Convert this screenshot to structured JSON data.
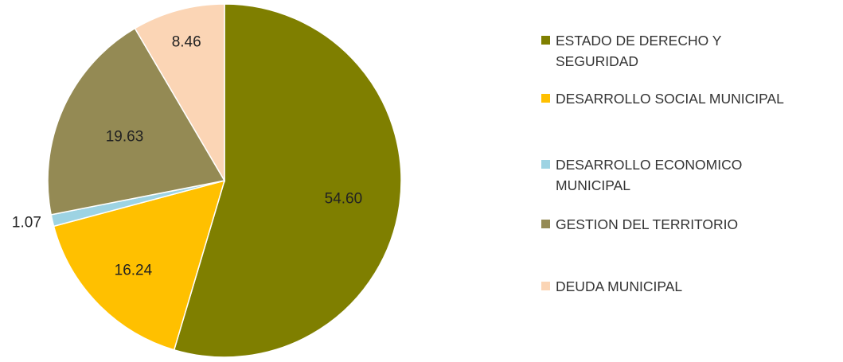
{
  "chart_data": {
    "type": "pie",
    "start_angle_deg": 0,
    "direction": "clockwise",
    "slices": [
      {
        "label": "ESTADO DE DERECHO Y SEGURIDAD",
        "value": 54.6,
        "display": "54.60",
        "color": "#7F7F00"
      },
      {
        "label": "DESARROLLO SOCIAL MUNICIPAL",
        "value": 16.24,
        "display": "16.24",
        "color": "#FFC000"
      },
      {
        "label": "DESARROLLO ECONOMICO MUNICIPAL",
        "value": 1.07,
        "display": "1.07",
        "color": "#9DD3E3"
      },
      {
        "label": "GESTION DEL TERRITORIO",
        "value": 19.63,
        "display": "19.63",
        "color": "#948A54"
      },
      {
        "label": "DEUDA MUNICIPAL",
        "value": 8.46,
        "display": "8.46",
        "color": "#FBD5B5"
      }
    ],
    "legend": {
      "position": "right",
      "items": [
        {
          "lines": [
            "ESTADO DE DERECHO Y",
            "SEGURIDAD"
          ],
          "color": "#7F7F00"
        },
        {
          "lines": [
            "DESARROLLO SOCIAL MUNICIPAL"
          ],
          "color": "#FFC000"
        },
        {
          "lines": [
            "DESARROLLO ECONOMICO",
            "MUNICIPAL"
          ],
          "color": "#9DD3E3"
        },
        {
          "lines": [
            "GESTION DEL TERRITORIO"
          ],
          "color": "#948A54"
        },
        {
          "lines": [
            "DEUDA MUNICIPAL"
          ],
          "color": "#FBD5B5"
        }
      ]
    }
  }
}
